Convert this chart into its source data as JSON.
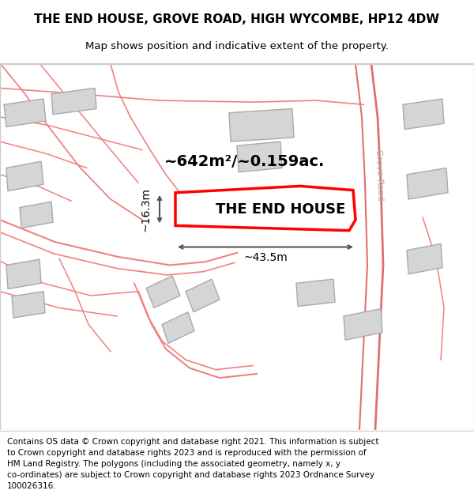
{
  "title_line1": "THE END HOUSE, GROVE ROAD, HIGH WYCOMBE, HP12 4DW",
  "title_line2": "Map shows position and indicative extent of the property.",
  "property_label": "THE END HOUSE",
  "area_label": "~642m²/~0.159ac.",
  "dim_width": "~43.5m",
  "dim_height": "~16.3m",
  "road_label": "Grove Road",
  "footer_lines": [
    "Contains OS data © Crown copyright and database right 2021. This information is subject",
    "to Crown copyright and database rights 2023 and is reproduced with the permission of",
    "HM Land Registry. The polygons (including the associated geometry, namely x, y",
    "co-ordinates) are subject to Crown copyright and database rights 2023 Ordnance Survey",
    "100026316."
  ],
  "map_bg": "#f0eeec",
  "road_line_color": "#f08080",
  "building_fill": "#d5d5d5",
  "dim_color": "#555555",
  "text_color": "#000000",
  "title_fontsize": 11,
  "subtitle_fontsize": 9.5,
  "label_fontsize": 13,
  "area_fontsize": 14,
  "dim_fontsize": 10,
  "footer_fontsize": 7.5,
  "road_label_fontsize": 8
}
